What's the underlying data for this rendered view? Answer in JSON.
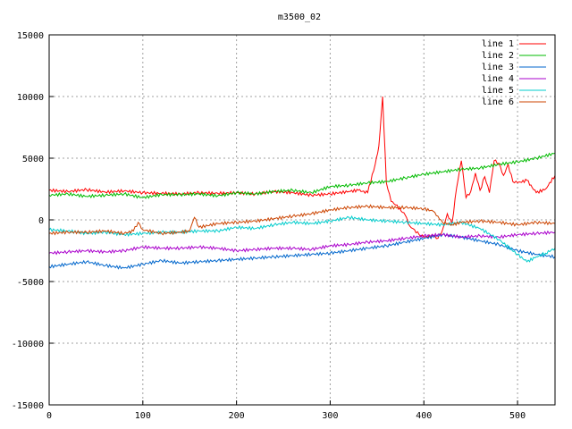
{
  "chart_data": {
    "type": "line",
    "title": "m3500_02",
    "xlabel": "",
    "ylabel": "",
    "xlim": [
      0,
      540
    ],
    "ylim": [
      -15000,
      15000
    ],
    "xticks": [
      0,
      100,
      200,
      300,
      400,
      500
    ],
    "yticks": [
      -15000,
      -10000,
      -5000,
      0,
      5000,
      10000,
      15000
    ],
    "grid": true,
    "legend_position": "top-right",
    "series": [
      {
        "name": "line 1",
        "color": "#ff0000",
        "points": [
          [
            0,
            2400
          ],
          [
            20,
            2300
          ],
          [
            40,
            2450
          ],
          [
            60,
            2250
          ],
          [
            80,
            2350
          ],
          [
            100,
            2200
          ],
          [
            120,
            2150
          ],
          [
            140,
            2100
          ],
          [
            160,
            2200
          ],
          [
            180,
            2150
          ],
          [
            200,
            2200
          ],
          [
            220,
            2100
          ],
          [
            240,
            2300
          ],
          [
            260,
            2200
          ],
          [
            280,
            2000
          ],
          [
            300,
            2100
          ],
          [
            320,
            2300
          ],
          [
            330,
            2400
          ],
          [
            340,
            2200
          ],
          [
            348,
            4500
          ],
          [
            352,
            6000
          ],
          [
            356,
            10000
          ],
          [
            360,
            3000
          ],
          [
            365,
            1500
          ],
          [
            370,
            1200
          ],
          [
            380,
            400
          ],
          [
            385,
            -500
          ],
          [
            390,
            -800
          ],
          [
            395,
            -1200
          ],
          [
            400,
            -1400
          ],
          [
            410,
            -1300
          ],
          [
            415,
            -1500
          ],
          [
            420,
            -800
          ],
          [
            425,
            500
          ],
          [
            430,
            -300
          ],
          [
            435,
            2600
          ],
          [
            440,
            4800
          ],
          [
            445,
            1800
          ],
          [
            450,
            2300
          ],
          [
            455,
            3800
          ],
          [
            460,
            2400
          ],
          [
            465,
            3500
          ],
          [
            470,
            2200
          ],
          [
            475,
            4800
          ],
          [
            480,
            4600
          ],
          [
            485,
            3600
          ],
          [
            490,
            4500
          ],
          [
            495,
            3100
          ],
          [
            500,
            3000
          ],
          [
            510,
            3200
          ],
          [
            520,
            2200
          ],
          [
            530,
            2500
          ],
          [
            540,
            3600
          ]
        ]
      },
      {
        "name": "line 2",
        "color": "#00bb00",
        "points": [
          [
            0,
            2000
          ],
          [
            20,
            2100
          ],
          [
            40,
            1900
          ],
          [
            60,
            2000
          ],
          [
            80,
            2100
          ],
          [
            100,
            1800
          ],
          [
            120,
            2050
          ],
          [
            140,
            2050
          ],
          [
            160,
            2100
          ],
          [
            180,
            1950
          ],
          [
            200,
            2200
          ],
          [
            220,
            2100
          ],
          [
            240,
            2300
          ],
          [
            260,
            2400
          ],
          [
            280,
            2200
          ],
          [
            300,
            2700
          ],
          [
            320,
            2800
          ],
          [
            340,
            3000
          ],
          [
            360,
            3100
          ],
          [
            380,
            3400
          ],
          [
            400,
            3700
          ],
          [
            420,
            3900
          ],
          [
            440,
            4100
          ],
          [
            460,
            4200
          ],
          [
            480,
            4500
          ],
          [
            500,
            4700
          ],
          [
            520,
            5000
          ],
          [
            540,
            5400
          ]
        ]
      },
      {
        "name": "line 3",
        "color": "#0066cc",
        "points": [
          [
            0,
            -3800
          ],
          [
            20,
            -3600
          ],
          [
            40,
            -3400
          ],
          [
            60,
            -3700
          ],
          [
            80,
            -3900
          ],
          [
            100,
            -3600
          ],
          [
            120,
            -3300
          ],
          [
            140,
            -3500
          ],
          [
            160,
            -3400
          ],
          [
            180,
            -3300
          ],
          [
            200,
            -3200
          ],
          [
            220,
            -3100
          ],
          [
            240,
            -3000
          ],
          [
            260,
            -2900
          ],
          [
            280,
            -2800
          ],
          [
            300,
            -2700
          ],
          [
            320,
            -2500
          ],
          [
            340,
            -2300
          ],
          [
            360,
            -2100
          ],
          [
            380,
            -1800
          ],
          [
            400,
            -1500
          ],
          [
            420,
            -1200
          ],
          [
            440,
            -1400
          ],
          [
            460,
            -1700
          ],
          [
            480,
            -2000
          ],
          [
            500,
            -2500
          ],
          [
            520,
            -2800
          ],
          [
            540,
            -3000
          ]
        ]
      },
      {
        "name": "line 4",
        "color": "#aa00cc",
        "points": [
          [
            0,
            -2700
          ],
          [
            20,
            -2600
          ],
          [
            40,
            -2500
          ],
          [
            60,
            -2600
          ],
          [
            80,
            -2500
          ],
          [
            100,
            -2200
          ],
          [
            120,
            -2300
          ],
          [
            140,
            -2300
          ],
          [
            160,
            -2200
          ],
          [
            180,
            -2300
          ],
          [
            200,
            -2500
          ],
          [
            220,
            -2400
          ],
          [
            240,
            -2300
          ],
          [
            260,
            -2300
          ],
          [
            280,
            -2400
          ],
          [
            300,
            -2100
          ],
          [
            320,
            -2000
          ],
          [
            340,
            -1800
          ],
          [
            360,
            -1700
          ],
          [
            380,
            -1500
          ],
          [
            400,
            -1300
          ],
          [
            420,
            -1200
          ],
          [
            440,
            -1400
          ],
          [
            460,
            -1300
          ],
          [
            480,
            -1400
          ],
          [
            500,
            -1200
          ],
          [
            520,
            -1100
          ],
          [
            540,
            -1000
          ]
        ]
      },
      {
        "name": "line 5",
        "color": "#00cccc",
        "points": [
          [
            0,
            -800
          ],
          [
            20,
            -900
          ],
          [
            40,
            -1100
          ],
          [
            60,
            -1000
          ],
          [
            80,
            -1200
          ],
          [
            100,
            -1100
          ],
          [
            120,
            -1000
          ],
          [
            140,
            -1000
          ],
          [
            160,
            -900
          ],
          [
            180,
            -900
          ],
          [
            200,
            -600
          ],
          [
            220,
            -700
          ],
          [
            240,
            -400
          ],
          [
            260,
            -200
          ],
          [
            280,
            -300
          ],
          [
            300,
            -100
          ],
          [
            320,
            200
          ],
          [
            340,
            0
          ],
          [
            360,
            -100
          ],
          [
            380,
            -200
          ],
          [
            400,
            -300
          ],
          [
            420,
            -400
          ],
          [
            440,
            -200
          ],
          [
            460,
            -700
          ],
          [
            480,
            -1600
          ],
          [
            500,
            -2800
          ],
          [
            510,
            -3400
          ],
          [
            520,
            -3000
          ],
          [
            530,
            -2700
          ],
          [
            540,
            -2300
          ]
        ]
      },
      {
        "name": "line 6",
        "color": "#cc4400",
        "points": [
          [
            0,
            -1100
          ],
          [
            20,
            -1000
          ],
          [
            40,
            -1000
          ],
          [
            60,
            -900
          ],
          [
            80,
            -1100
          ],
          [
            90,
            -900
          ],
          [
            95,
            -200
          ],
          [
            100,
            -800
          ],
          [
            120,
            -1100
          ],
          [
            140,
            -1000
          ],
          [
            150,
            -900
          ],
          [
            155,
            200
          ],
          [
            160,
            -600
          ],
          [
            180,
            -300
          ],
          [
            200,
            -200
          ],
          [
            220,
            -100
          ],
          [
            240,
            100
          ],
          [
            260,
            300
          ],
          [
            280,
            500
          ],
          [
            300,
            800
          ],
          [
            320,
            1000
          ],
          [
            340,
            1100
          ],
          [
            360,
            1000
          ],
          [
            380,
            1000
          ],
          [
            400,
            900
          ],
          [
            410,
            700
          ],
          [
            415,
            300
          ],
          [
            420,
            -200
          ],
          [
            430,
            -400
          ],
          [
            440,
            -200
          ],
          [
            460,
            -100
          ],
          [
            480,
            -200
          ],
          [
            500,
            -400
          ],
          [
            520,
            -200
          ],
          [
            540,
            -300
          ]
        ]
      }
    ]
  }
}
